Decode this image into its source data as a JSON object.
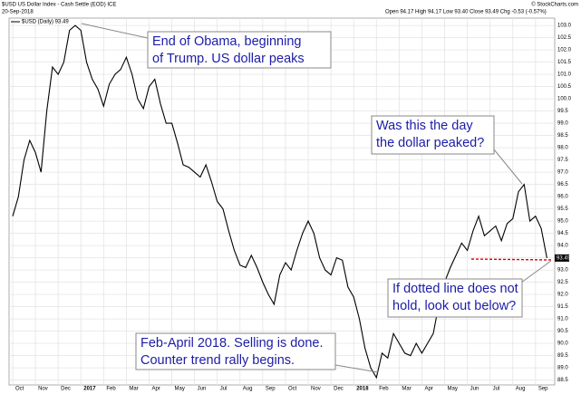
{
  "chart_data": {
    "type": "line",
    "title": "$USD US Dollar Index - Cash Settle (EOD) ICE",
    "date": "20-Sep-2018",
    "quote": "Open 94.17  High 94.17  Low 93.40  Close 93.49  Chg -0.53 (-0.57%)",
    "source": "© StockCharts.com",
    "legend_label": "$USD (Daily) 93.49",
    "last_value_label": "93.49",
    "grid": true,
    "categories": [
      "Oct",
      null,
      null,
      null,
      "Nov",
      null,
      null,
      null,
      "Dec",
      null,
      null,
      null,
      "2017",
      null,
      null,
      null,
      "Feb",
      null,
      null,
      null,
      "Mar",
      null,
      null,
      null,
      "Apr",
      null,
      null,
      null,
      "May",
      null,
      null,
      null,
      "Jun",
      null,
      null,
      null,
      "Jul",
      null,
      null,
      null,
      "Aug",
      null,
      null,
      null,
      "Sep",
      null,
      null,
      null,
      "Oct",
      null,
      null,
      null,
      "Nov",
      null,
      null,
      null,
      "Dec",
      null,
      null,
      null,
      "2018",
      null,
      null,
      null,
      "Feb",
      null,
      null,
      null,
      "Mar",
      null,
      null,
      null,
      "Apr",
      null,
      null,
      null,
      "May",
      null,
      null,
      null,
      "Jun",
      null,
      null,
      null,
      "Jul",
      null,
      null,
      null,
      "Aug",
      null,
      null,
      null,
      "Sep",
      null,
      null
    ],
    "series": [
      {
        "name": "$USD",
        "color": "#000000",
        "values": [
          95.2,
          96.0,
          97.5,
          98.3,
          97.8,
          97.0,
          99.5,
          101.3,
          101.0,
          101.5,
          102.8,
          103.0,
          102.8,
          101.5,
          100.8,
          100.4,
          99.7,
          100.6,
          101.0,
          101.2,
          101.7,
          101.0,
          100.0,
          99.6,
          100.5,
          100.8,
          99.8,
          99.0,
          99.0,
          98.2,
          97.3,
          97.2,
          97.0,
          96.8,
          97.3,
          96.6,
          95.8,
          95.5,
          94.6,
          93.8,
          93.2,
          93.1,
          93.6,
          93.1,
          92.5,
          92.0,
          91.6,
          92.8,
          93.3,
          93.0,
          93.8,
          94.5,
          95.0,
          94.5,
          93.5,
          93.0,
          92.8,
          93.5,
          93.4,
          92.3,
          91.9,
          91.0,
          89.8,
          89.0,
          88.6,
          89.6,
          89.4,
          90.4,
          90.0,
          89.6,
          89.5,
          90.0,
          89.6,
          90.0,
          90.4,
          91.6,
          92.5,
          93.1,
          93.6,
          94.1,
          93.8,
          94.6,
          95.2,
          94.4,
          94.6,
          94.8,
          94.2,
          94.9,
          95.1,
          96.2,
          96.5,
          95.0,
          95.2,
          94.7,
          93.49
        ]
      }
    ],
    "ylim": [
      88.3,
      103.3
    ],
    "yticks": [
      88.5,
      {
        "value": 89,
        "label": "89.0"
      },
      89.5,
      {
        "value": 90,
        "label": "90.0"
      },
      90.5,
      {
        "value": 91,
        "label": "91.0"
      },
      91.5,
      {
        "value": 92,
        "label": "92.0"
      },
      92.5,
      {
        "value": 93,
        "label": "93.0"
      },
      93.5,
      {
        "value": 94,
        "label": "94.0"
      },
      94.5,
      {
        "value": 95,
        "label": "95.0"
      },
      95.5,
      {
        "value": 96,
        "label": "96.0"
      },
      96.5,
      {
        "value": 97,
        "label": "97.0"
      },
      97.5,
      {
        "value": 98,
        "label": "98.0"
      },
      98.5,
      {
        "value": 99,
        "label": "99.0"
      },
      99.5,
      {
        "value": 100,
        "label": "100.0"
      },
      100.5,
      {
        "value": 101,
        "label": "101.0"
      },
      101.5,
      {
        "value": 102,
        "label": "102.0"
      },
      102.5,
      {
        "value": 103,
        "label": "103.0"
      }
    ],
    "annotations": [
      {
        "lines": [
          "End of Obama, beginning",
          "of Trump. US dollar peaks"
        ]
      },
      {
        "lines": [
          "Was this the day",
          "the dollar peaked?"
        ]
      },
      {
        "lines": [
          "If dotted line does not",
          "hold, look out below?"
        ]
      },
      {
        "lines": [
          "Feb-April 2018. Selling is done.",
          "Counter trend rally begins."
        ]
      }
    ]
  }
}
